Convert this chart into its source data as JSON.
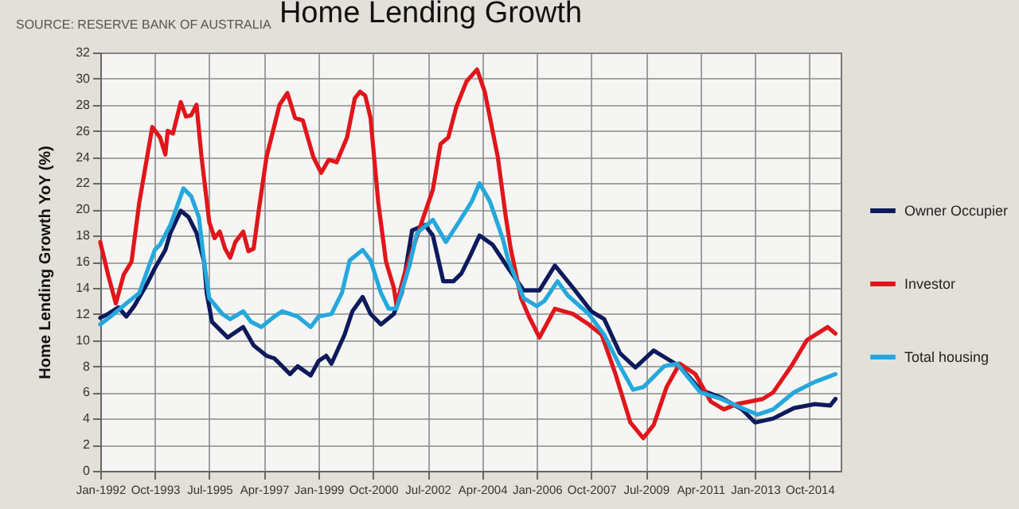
{
  "chart_data": {
    "type": "line",
    "title": "Home Lending Growth",
    "ylabel": "Home Lending Growth YoY (%)",
    "annotations": [
      "SOURCE: RESERVE BANK OF AUSTRALIA"
    ],
    "xlim": [
      "1992-01",
      "2015-10"
    ],
    "xticks": [
      {
        "value": "1992-01",
        "label": "Jan-1992"
      },
      {
        "value": "1993-10",
        "label": "Oct-1993"
      },
      {
        "value": "1995-07",
        "label": "Jul-1995"
      },
      {
        "value": "1997-04",
        "label": "Apr-1997"
      },
      {
        "value": "1999-01",
        "label": "Jan-1999"
      },
      {
        "value": "2000-10",
        "label": "Oct-2000"
      },
      {
        "value": "2002-07",
        "label": "Jul-2002"
      },
      {
        "value": "2004-04",
        "label": "Apr-2004"
      },
      {
        "value": "2006-01",
        "label": "Jan-2006"
      },
      {
        "value": "2007-10",
        "label": "Oct-2007"
      },
      {
        "value": "2009-07",
        "label": "Jul-2009"
      },
      {
        "value": "2011-04",
        "label": "Apr-2011"
      },
      {
        "value": "2013-01",
        "label": "Jan-2013"
      },
      {
        "value": "2014-10",
        "label": "Oct-2014"
      }
    ],
    "ylim": [
      0,
      32
    ],
    "yticks": [
      0,
      2,
      4,
      6,
      8,
      10,
      12,
      14,
      16,
      18,
      20,
      22,
      24,
      26,
      28,
      30,
      32
    ],
    "grid": true,
    "legend": "right",
    "marker": "none",
    "line_style": "solid",
    "series": [
      {
        "name": "Owner Occupier",
        "color": "#0d1a5c",
        "x": [
          "1992-01",
          "1992-04",
          "1992-08",
          "1992-11",
          "1993-02",
          "1993-07",
          "1993-10",
          "1994-02",
          "1994-04",
          "1994-08",
          "1994-11",
          "1995-02",
          "1995-05",
          "1995-06",
          "1995-08",
          "1996-02",
          "1996-08",
          "1996-12",
          "1997-05",
          "1997-08",
          "1998-02",
          "1998-05",
          "1998-10",
          "1999-01",
          "1999-04",
          "1999-06",
          "1999-11",
          "2000-02",
          "2000-06",
          "2000-09",
          "2001-01",
          "2001-06",
          "2001-09",
          "2002-01",
          "2002-06",
          "2002-09",
          "2003-01",
          "2003-05",
          "2003-08",
          "2003-11",
          "2004-03",
          "2004-08",
          "2005-02",
          "2005-08",
          "2006-02",
          "2006-08",
          "2007-03",
          "2007-10",
          "2008-03",
          "2008-09",
          "2009-03",
          "2009-10",
          "2010-03",
          "2010-08",
          "2011-04",
          "2011-12",
          "2012-08",
          "2013-01",
          "2013-08",
          "2014-04",
          "2014-12",
          "2015-06",
          "2015-08"
        ],
        "values": [
          11.7,
          12,
          12.5,
          11.8,
          12.6,
          14.3,
          15.5,
          16.9,
          18.2,
          19.9,
          19.4,
          18.2,
          16,
          13.6,
          11.4,
          10.2,
          11,
          9.6,
          8.8,
          8.6,
          7.4,
          8,
          7.3,
          8.4,
          8.8,
          8.2,
          10.4,
          12.2,
          13.3,
          12,
          11.2,
          12,
          13.6,
          18.4,
          18.8,
          18,
          14.5,
          14.5,
          15.1,
          16.3,
          18,
          17.3,
          15.5,
          13.8,
          13.8,
          15.7,
          14,
          12.2,
          11.6,
          9,
          7.9,
          9.2,
          8.6,
          8,
          6.2,
          5.6,
          4.7,
          3.7,
          4,
          4.8,
          5.1,
          5,
          5.5
        ]
      },
      {
        "name": "Investor",
        "color": "#e0161b",
        "x": [
          "1992-01",
          "1992-04",
          "1992-07",
          "1992-10",
          "1993-01",
          "1993-04",
          "1993-09",
          "1993-12",
          "1994-02",
          "1994-03",
          "1994-05",
          "1994-08",
          "1994-10",
          "1994-12",
          "1995-02",
          "1995-04",
          "1995-07",
          "1995-09",
          "1995-11",
          "1996-01",
          "1996-03",
          "1996-05",
          "1996-08",
          "1996-10",
          "1996-12",
          "1997-02",
          "1997-05",
          "1997-10",
          "1998-01",
          "1998-04",
          "1998-07",
          "1998-11",
          "1999-02",
          "1999-05",
          "1999-08",
          "1999-12",
          "2000-03",
          "2000-05",
          "2000-07",
          "2000-09",
          "2000-12",
          "2001-03",
          "2001-06",
          "2001-07",
          "2001-10",
          "2002-03",
          "2002-09",
          "2002-12",
          "2003-03",
          "2003-06",
          "2003-10",
          "2004-02",
          "2004-05",
          "2004-10",
          "2005-01",
          "2005-03",
          "2005-07",
          "2005-10",
          "2006-02",
          "2006-08",
          "2007-03",
          "2007-09",
          "2008-02",
          "2008-07",
          "2009-01",
          "2009-06",
          "2009-10",
          "2010-03",
          "2010-08",
          "2011-02",
          "2011-08",
          "2012-01",
          "2012-06",
          "2012-11",
          "2013-04",
          "2013-08",
          "2014-03",
          "2014-09",
          "2015-05",
          "2015-08"
        ],
        "values": [
          17.5,
          15,
          12.8,
          15,
          16,
          20.5,
          26.3,
          25.5,
          24.2,
          26,
          25.8,
          28.2,
          27.1,
          27.2,
          28,
          24,
          19,
          17.8,
          18.3,
          17,
          16.3,
          17.5,
          18.3,
          16.8,
          17,
          20,
          24,
          28,
          28.9,
          27,
          26.8,
          24,
          22.8,
          23.8,
          23.6,
          25.5,
          28.5,
          29,
          28.7,
          27,
          20.5,
          16,
          14,
          12.7,
          15,
          18,
          21.5,
          25,
          25.5,
          27.8,
          29.8,
          30.7,
          29,
          24,
          19.5,
          17,
          13.2,
          11.8,
          10.2,
          12.4,
          12,
          11.2,
          10.4,
          7.6,
          3.7,
          2.5,
          3.5,
          6.4,
          8.2,
          7.4,
          5.3,
          4.7,
          5.1,
          5.3,
          5.5,
          6,
          8,
          10,
          11,
          10.5
        ]
      },
      {
        "name": "Total housing",
        "color": "#25a8dc",
        "x": [
          "1992-01",
          "1992-05",
          "1992-11",
          "1993-04",
          "1993-10",
          "1993-12",
          "1994-04",
          "1994-09",
          "1994-12",
          "1995-03",
          "1995-05",
          "1995-07",
          "1995-12",
          "1996-03",
          "1996-08",
          "1996-11",
          "1997-03",
          "1997-08",
          "1997-11",
          "1998-05",
          "1998-10",
          "1999-01",
          "1999-06",
          "1999-10",
          "2000-01",
          "2000-06",
          "2000-09",
          "2001-01",
          "2001-04",
          "2001-07",
          "2001-12",
          "2002-03",
          "2002-09",
          "2003-02",
          "2003-07",
          "2003-12",
          "2004-03",
          "2004-07",
          "2004-12",
          "2005-02",
          "2005-08",
          "2006-01",
          "2006-04",
          "2006-09",
          "2007-01",
          "2007-09",
          "2008-03",
          "2008-09",
          "2009-02",
          "2009-06",
          "2010-02",
          "2010-07",
          "2011-04",
          "2011-12",
          "2012-08",
          "2013-02",
          "2013-08",
          "2014-04",
          "2014-12",
          "2015-08"
        ],
        "values": [
          11.2,
          11.8,
          12.8,
          13.6,
          16.9,
          17.3,
          18.8,
          21.6,
          21,
          19.4,
          16,
          13.2,
          12,
          11.6,
          12.2,
          11.4,
          11,
          11.8,
          12.2,
          11.8,
          11,
          11.8,
          12,
          13.6,
          16.1,
          16.9,
          16.1,
          13.6,
          12.4,
          12.4,
          15.7,
          18.2,
          19.2,
          17.5,
          19,
          20.6,
          22,
          20.6,
          17.7,
          16.1,
          13.2,
          12.6,
          13,
          14.5,
          13.4,
          12,
          10.4,
          8,
          6.2,
          6.4,
          8,
          8.2,
          6,
          5.5,
          4.8,
          4.3,
          4.7,
          6,
          6.8,
          7.4
        ]
      }
    ]
  }
}
